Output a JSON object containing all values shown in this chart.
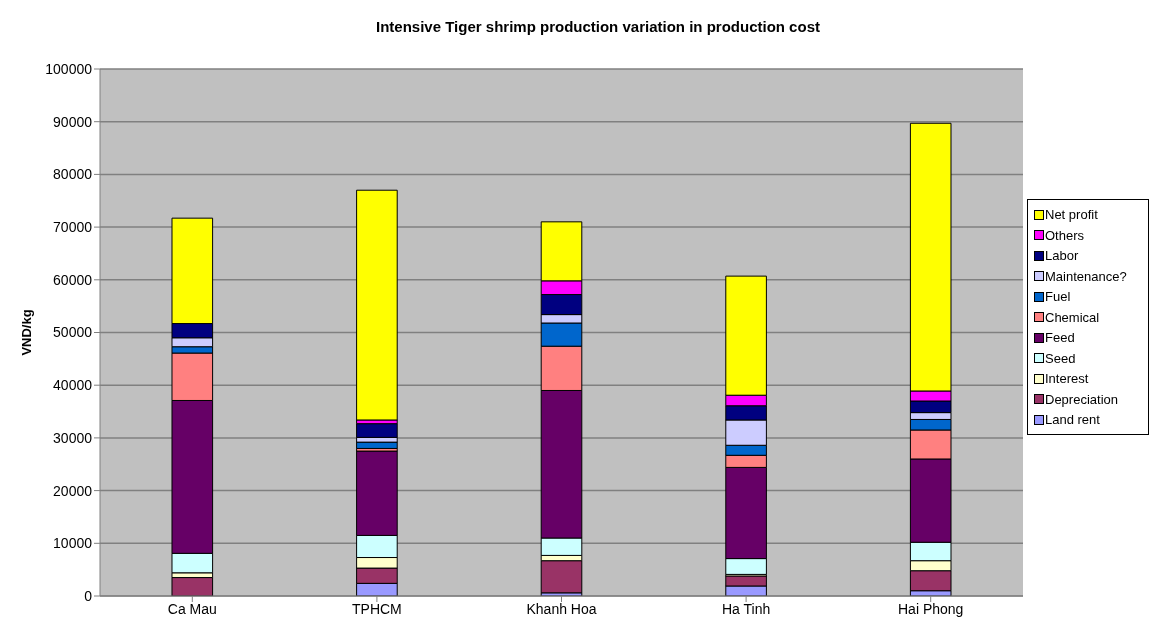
{
  "chart_data": {
    "type": "bar",
    "title": "Intensive Tiger shrimp production variation in production cost",
    "ylabel": "VND/kg",
    "categories": [
      "Ca Mau",
      "TPHCM",
      "Khanh Hoa",
      "Ha Tinh",
      "Hai Phong"
    ],
    "stacked": true,
    "ylim": [
      0,
      100000
    ],
    "yticks": [
      0,
      10000,
      20000,
      30000,
      40000,
      50000,
      60000,
      70000,
      80000,
      90000,
      100000
    ],
    "grid": "y",
    "legend": "right",
    "series": [
      {
        "name": "Land rent",
        "color": "#9999ff",
        "values": [
          0,
          2400,
          600,
          1900,
          1000
        ]
      },
      {
        "name": "Depreciation",
        "color": "#993366",
        "values": [
          3500,
          2900,
          6100,
          1900,
          3800
        ]
      },
      {
        "name": "Interest",
        "color": "#ffffcc",
        "values": [
          900,
          2000,
          1000,
          300,
          1900
        ]
      },
      {
        "name": "Seed",
        "color": "#ccffff",
        "values": [
          3700,
          4200,
          3300,
          3000,
          3500
        ]
      },
      {
        "name": "Feed",
        "color": "#660066",
        "values": [
          29000,
          16000,
          28000,
          17300,
          15800
        ]
      },
      {
        "name": "Chemical",
        "color": "#ff8080",
        "values": [
          9000,
          500,
          8400,
          2300,
          5500
        ]
      },
      {
        "name": "Fuel",
        "color": "#0066cc",
        "values": [
          1200,
          1200,
          4400,
          1900,
          2000
        ]
      },
      {
        "name": "Maintenance?",
        "color": "#ccccff",
        "values": [
          1700,
          900,
          1600,
          4800,
          1300
        ]
      },
      {
        "name": "Labor",
        "color": "#000080",
        "values": [
          2700,
          2600,
          3800,
          2700,
          2200
        ]
      },
      {
        "name": "Others",
        "color": "#ff00ff",
        "values": [
          0,
          700,
          2600,
          2000,
          1900
        ]
      },
      {
        "name": "Net profit",
        "color": "#ffff00",
        "values": [
          20000,
          43600,
          11200,
          22600,
          50800
        ]
      }
    ]
  }
}
